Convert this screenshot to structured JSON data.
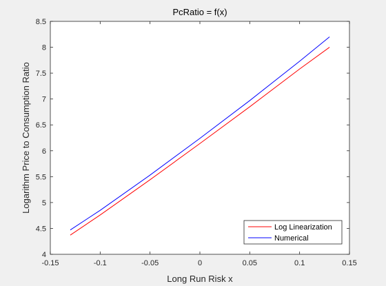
{
  "chart_data": {
    "type": "line",
    "title": "PcRatio = f(x)",
    "xlabel": "Long Run Risk x",
    "ylabel": "Logarithm Price to Consumption Ratio",
    "xlim": [
      -0.15,
      0.15
    ],
    "ylim": [
      4,
      8.5
    ],
    "xticks": [
      -0.15,
      -0.1,
      -0.05,
      0,
      0.05,
      0.1,
      0.15
    ],
    "xtick_labels": [
      "-0.15",
      "-0.1",
      "-0.05",
      "0",
      "0.05",
      "0.1",
      "0.15"
    ],
    "yticks": [
      4,
      4.5,
      5,
      5.5,
      6,
      6.5,
      7,
      7.5,
      8,
      8.5
    ],
    "ytick_labels": [
      "4",
      "4.5",
      "5",
      "5.5",
      "6",
      "6.5",
      "7",
      "7.5",
      "8",
      "8.5"
    ],
    "grid": false,
    "legend_position": "bottom-right",
    "series": [
      {
        "name": "Log Linearization",
        "color": "#ff0000",
        "x": [
          -0.13,
          -0.1,
          -0.05,
          0,
          0.05,
          0.1,
          0.13
        ],
        "y": [
          4.37,
          4.76,
          5.44,
          6.14,
          6.85,
          7.58,
          8.0
        ]
      },
      {
        "name": "Numerical",
        "color": "#0000ff",
        "x": [
          -0.13,
          -0.1,
          -0.05,
          0,
          0.05,
          0.1,
          0.13
        ],
        "y": [
          4.47,
          4.85,
          5.53,
          6.24,
          6.97,
          7.73,
          8.2
        ]
      }
    ]
  }
}
